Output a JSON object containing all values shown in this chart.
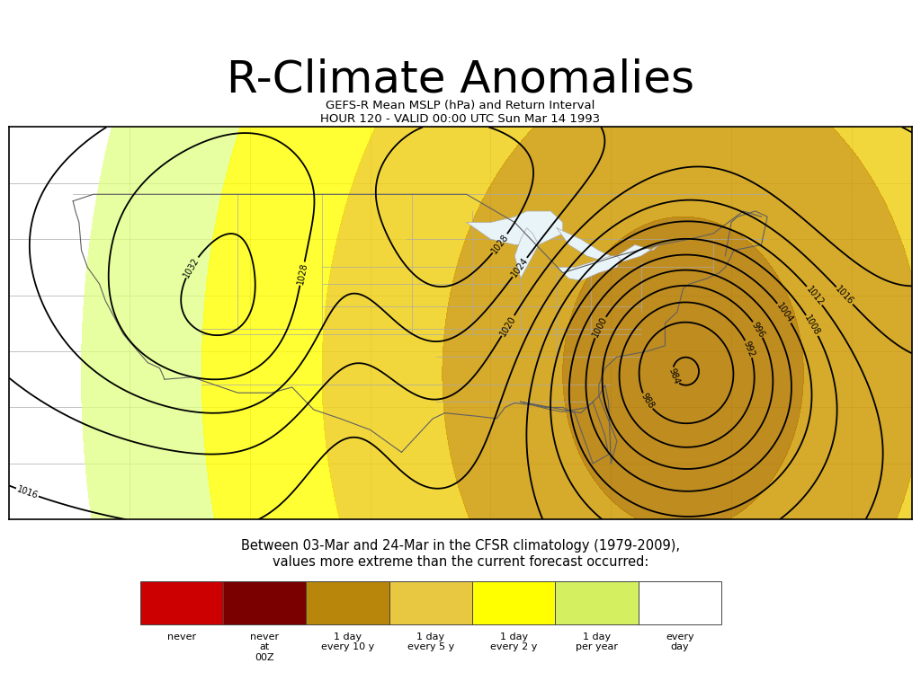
{
  "title": "R-Climate Anomalies",
  "title_fontsize": 36,
  "subtitle_line1": "GEFS-R Mean MSLP (hPa) and Return Interval",
  "subtitle_line2": "HOUR 120 - VALID 00:00 UTC Sun Mar 14 1993",
  "subtitle_fontsize": 9.5,
  "annotation_text": "Between 03-Mar and 24-Mar in the CFSR climatology (1979-2009),\nvalues more extreme than the current forecast occurred:",
  "annotation_fontsize": 10.5,
  "legend_colors": [
    "#cc0000",
    "#7a0000",
    "#b8860b",
    "#e8c840",
    "#ffff00",
    "#d4f060",
    "#ffffff"
  ],
  "legend_labels": [
    "never",
    "never\nat\n00Z",
    "1 day\nevery 10 y",
    "1 day\nevery 5 y",
    "1 day\nevery 2 y",
    "1 day\nper year",
    "every\nday"
  ],
  "bg_color": "#ffffff",
  "map_bg": "#ffffff",
  "contour_color": "#000000",
  "map_border_color": "#000000",
  "grid_color": "#aaaaaa",
  "coast_color": "#606060",
  "state_color": "#aaaaaa"
}
